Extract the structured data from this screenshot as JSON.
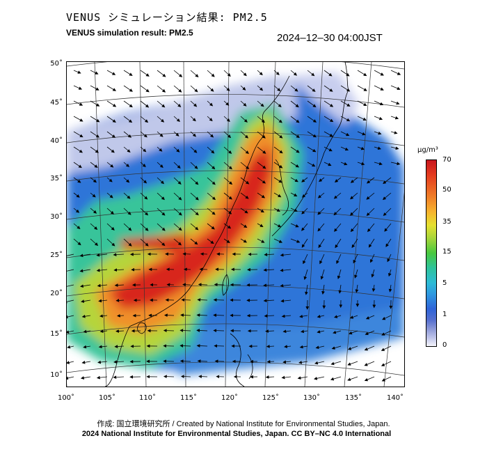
{
  "header": {
    "title_jp": "VENUS シミュレーション結果: PM2.5",
    "title_en": "VENUS simulation result: PM2.5",
    "timestamp": "2024–12–30 04:00JST"
  },
  "map": {
    "lat_ticks": [
      "50˚",
      "45˚",
      "40˚",
      "35˚",
      "30˚",
      "25˚",
      "20˚",
      "15˚",
      "10˚"
    ],
    "lat_values": [
      50,
      45,
      40,
      35,
      30,
      25,
      20,
      15,
      10
    ],
    "lon_ticks": [
      "100˚",
      "105˚",
      "110˚",
      "115˚",
      "120˚",
      "125˚",
      "130˚",
      "135˚",
      "140˚"
    ],
    "lon_values": [
      100,
      105,
      110,
      115,
      120,
      125,
      130,
      135,
      140
    ],
    "lat_range": [
      9,
      51
    ],
    "lon_range": [
      100,
      141
    ],
    "concentration_field": "PM2.5",
    "wind_vectors": "shown"
  },
  "colorbar": {
    "unit": "μg/m³",
    "labels": [
      "70",
      "50",
      "35",
      "15",
      "5",
      "1",
      "0"
    ],
    "colors": [
      "#c8161e",
      "#f08028",
      "#e5e030",
      "#48c83f",
      "#2dbbd6",
      "#2f64d8",
      "#f4f4fb"
    ]
  },
  "footer": {
    "credit": "作成: 国立環境研究所 / Created by National Institute for Environmental Studies, Japan.",
    "copyright": "2024 National Institute for Environmental Studies, Japan. CC BY–NC 4.0 International"
  }
}
